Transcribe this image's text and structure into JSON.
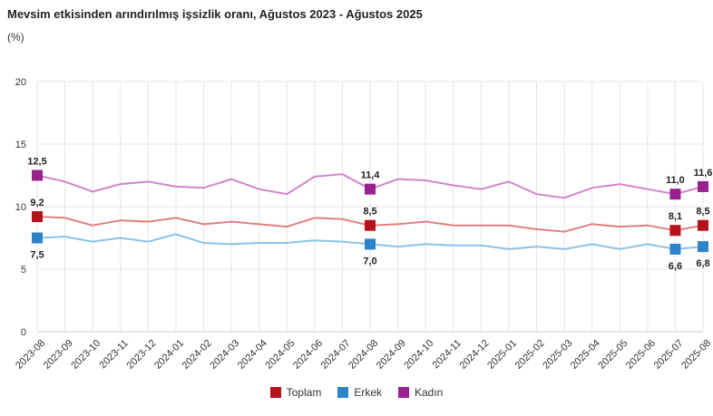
{
  "title": "Mevsim etkisinden arındırılmış işsizlik oranı, Ağustos 2023 - Ağustos 2025",
  "subtitle": "(%)",
  "chart_data": {
    "type": "line",
    "title": "Mevsim etkisinden arındırılmış işsizlik oranı, Ağustos 2023 - Ağustos 2025",
    "ylabel": "(%)",
    "ylim": [
      0,
      20
    ],
    "yticks": [
      0,
      5,
      10,
      15,
      20
    ],
    "grid": true,
    "legend": "bottom",
    "categories": [
      "2023-08",
      "2023-09",
      "2023-10",
      "2023-11",
      "2023-12",
      "2024-01",
      "2024-02",
      "2024-03",
      "2024-04",
      "2024-05",
      "2024-06",
      "2024-07",
      "2024-08",
      "2024-09",
      "2024-10",
      "2024-11",
      "2024-12",
      "2025-01",
      "2025-02",
      "2025-03",
      "2025-04",
      "2025-05",
      "2025-06",
      "2025-07",
      "2025-08"
    ],
    "labeled_indices": [
      0,
      12,
      23,
      24
    ],
    "series": [
      {
        "name": "Toplam",
        "color": "#b5121b",
        "line_color": "#e08080",
        "values": [
          9.2,
          9.1,
          8.5,
          8.9,
          8.8,
          9.1,
          8.6,
          8.8,
          8.6,
          8.4,
          9.1,
          9.0,
          8.5,
          8.6,
          8.8,
          8.5,
          8.5,
          8.5,
          8.2,
          8.0,
          8.6,
          8.4,
          8.5,
          8.1,
          8.5
        ]
      },
      {
        "name": "Erkek",
        "color": "#2b83c9",
        "line_color": "#8cc1ea",
        "values": [
          7.5,
          7.6,
          7.2,
          7.5,
          7.2,
          7.8,
          7.1,
          7.0,
          7.1,
          7.1,
          7.3,
          7.2,
          7.0,
          6.8,
          7.0,
          6.9,
          6.9,
          6.6,
          6.8,
          6.6,
          7.0,
          6.6,
          7.0,
          6.6,
          6.8
        ]
      },
      {
        "name": "Kadın",
        "color": "#99218e",
        "line_color": "#cf86c8",
        "values": [
          12.5,
          12.0,
          11.2,
          11.8,
          12.0,
          11.6,
          11.5,
          12.2,
          11.4,
          11.0,
          12.4,
          12.6,
          11.4,
          12.2,
          12.1,
          11.7,
          11.4,
          12.0,
          11.0,
          10.7,
          11.5,
          11.8,
          11.4,
          11.0,
          11.6
        ]
      }
    ]
  }
}
